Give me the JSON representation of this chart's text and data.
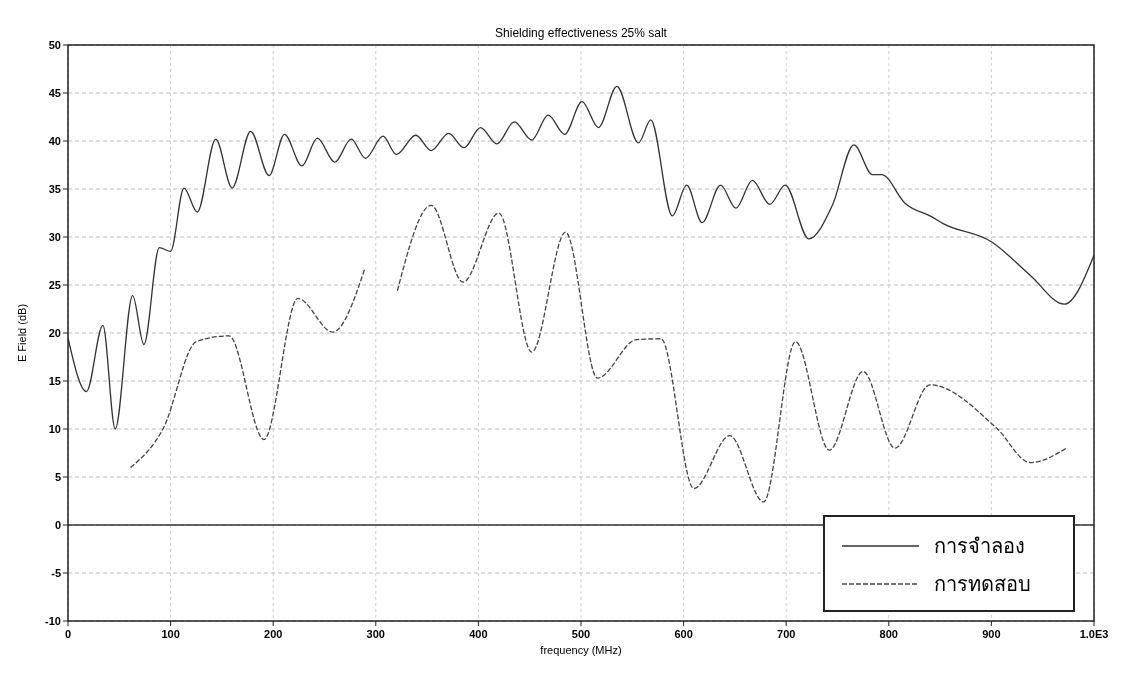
{
  "chart_data": {
    "type": "line",
    "title": "Shielding effectiveness 25% salt",
    "xlabel": "frequency (MHz)",
    "ylabel": "E Field (dB)",
    "xlim": [
      0,
      1000
    ],
    "xticks": [
      0,
      100,
      200,
      300,
      400,
      500,
      600,
      700,
      800,
      900,
      {
        "value": 1000,
        "label": "1.0E3"
      }
    ],
    "ylim": [
      -10,
      50
    ],
    "yticks": [
      -10,
      -5,
      0,
      5,
      10,
      15,
      20,
      25,
      30,
      35,
      40,
      45,
      50
    ],
    "grid": true,
    "legend": "bottom right",
    "marker": "none",
    "ref_lines": [
      {
        "axis": "y",
        "value": 0,
        "color": "#333333",
        "line_style": "solid"
      }
    ],
    "series": [
      {
        "name": "การจำลอง",
        "color": "#333333",
        "line_style": "solid",
        "x": [
          0,
          18,
          34,
          46,
          63,
          74,
          89,
          100,
          113,
          126,
          144,
          160,
          178,
          196,
          211,
          228,
          243,
          260,
          276,
          290,
          307,
          320,
          339,
          354,
          371,
          386,
          402,
          418,
          435,
          452,
          468,
          484,
          501,
          517,
          535,
          556,
          568,
          589,
          603,
          618,
          636,
          651,
          667,
          684,
          699,
          722,
          745,
          766,
          784,
          793,
          816,
          842,
          853,
          900,
          938,
          971,
          1000
        ],
        "values": [
          19.5,
          13.9,
          20.8,
          10,
          23.9,
          18.8,
          28.9,
          28.5,
          35.1,
          32.6,
          40.2,
          35.1,
          41,
          36.4,
          40.7,
          37.4,
          40.3,
          37.8,
          40.2,
          38.2,
          40.5,
          38.6,
          40.6,
          39,
          40.8,
          39.3,
          41.4,
          39.7,
          42,
          40.1,
          42.7,
          40.7,
          44.1,
          41.4,
          45.7,
          39.8,
          42.2,
          32.2,
          35.4,
          31.5,
          35.4,
          33,
          35.9,
          33.4,
          35.4,
          29.8,
          33.3,
          39.6,
          36.5,
          36.5,
          33.5,
          32.1,
          31.4,
          29.5,
          26,
          23,
          28.1
        ]
      },
      {
        "name": "การทดสอบ",
        "color": "#444444",
        "line_style": "dashed",
        "x": [
          61,
          93,
          125,
          157,
          191,
          224,
          258,
          289,
          305,
          321,
          354,
          385,
          420,
          452,
          485,
          516,
          554,
          578,
          610,
          645,
          678,
          709,
          742,
          775,
          806,
          840,
          905,
          938,
          973
        ],
        "values": [
          6,
          10.1,
          19.1,
          19.7,
          8.9,
          23.6,
          20.1,
          26.6,
          null,
          24.4,
          33.3,
          25.3,
          32.5,
          18,
          30.5,
          15.3,
          19.3,
          19.4,
          3.8,
          9.3,
          2.4,
          19.1,
          7.8,
          16,
          8,
          14.6,
          10.1,
          6.5,
          8
        ]
      }
    ]
  }
}
